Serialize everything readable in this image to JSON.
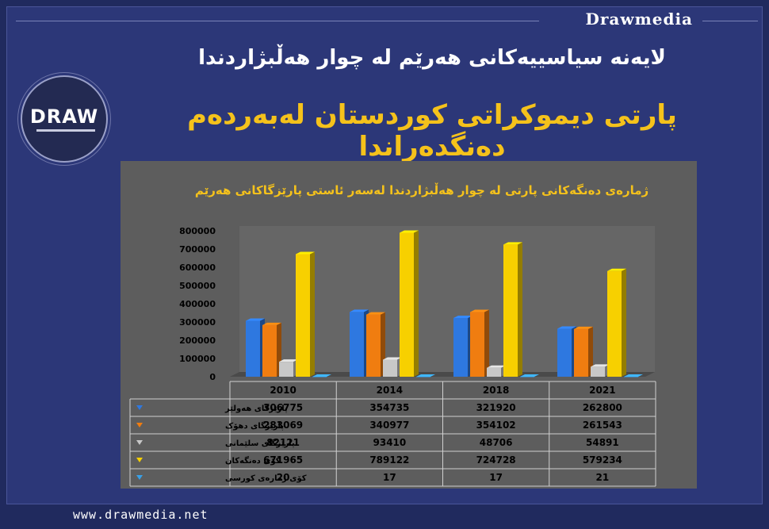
{
  "brand": "Drawmedia",
  "logo_text": "DRAW",
  "title_primary": "لایەنە سیاسییەکانی هەرێم لە چوار هەڵبژاردندا",
  "title_secondary": "پارتی دیموکراتی کوردستان لەبەردەم دەنگدەراندا",
  "footer_url": "www.drawmedia.net",
  "colors": {
    "background": "#202a5e",
    "accent": "#f5c21b"
  },
  "chart_data": {
    "type": "bar",
    "title": "ژمارەی دەنگەکانی پارتی لە چوار هەڵبژاردندا لەسەر ئاستی پارێزگاکانی هەرێم",
    "categories": [
      "2010",
      "2014",
      "2018",
      "2021"
    ],
    "ylim": [
      0,
      800000
    ],
    "yticks": [
      "800000",
      "700000",
      "600000",
      "500000",
      "400000",
      "300000",
      "200000",
      "100000",
      "0"
    ],
    "series": [
      {
        "name": "پارێزگای هەولێر",
        "color": "#2e78e0",
        "values": [
          306775,
          354735,
          321920,
          262800
        ]
      },
      {
        "name": "پارێزگای دهۆک",
        "color": "#f07d10",
        "values": [
          283069,
          340977,
          354102,
          261543
        ]
      },
      {
        "name": "پارێزگای سلێمانی",
        "color": "#c8c8c8",
        "values": [
          82121,
          93410,
          48706,
          54891
        ]
      },
      {
        "name": "کۆی دەنگەکان",
        "color": "#f7d000",
        "values": [
          671965,
          789122,
          724728,
          579234
        ]
      },
      {
        "name": "کۆی ژمارەی کورسی",
        "color": "#38a0e8",
        "values": [
          20,
          17,
          17,
          21
        ]
      }
    ],
    "legend": "table-below",
    "grid": false
  }
}
